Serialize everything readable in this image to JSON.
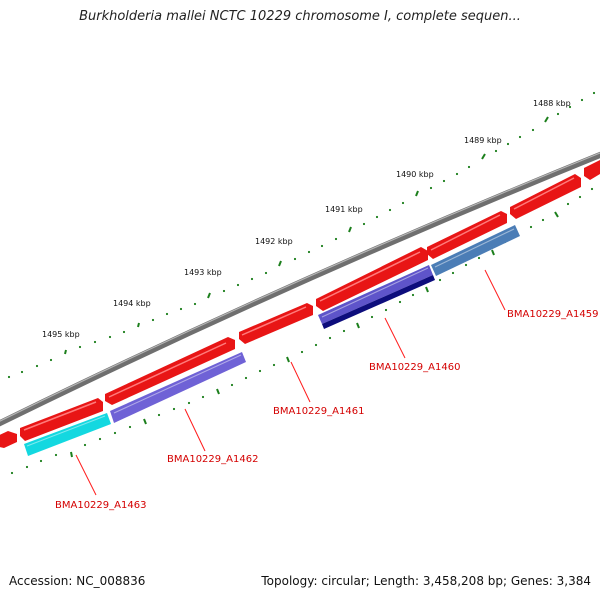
{
  "title": "Burkholderia mallei NCTC 10229 chromosome I, complete sequen...",
  "footer": {
    "accession": "Accession: NC_008836",
    "summary": "Topology: circular; Length: 3,458,208 bp; Genes: 3,384"
  },
  "scale_labels": [
    "1488 kbp",
    "1489 kbp",
    "1490 kbp",
    "1491 kbp",
    "1492 kbp",
    "1493 kbp",
    "1494 kbp",
    "1495 kbp"
  ],
  "genes": [
    {
      "name": "BMA10229_A1459",
      "color": "#4b7db6"
    },
    {
      "name": "BMA10229_A1460",
      "color": "#0d0d7c"
    },
    {
      "name": "BMA10229_A1461",
      "color": "#6f62d6"
    },
    {
      "name": "BMA10229_A1462",
      "color": "#6f62d6"
    },
    {
      "name": "BMA10229_A1463",
      "color": "#13d8e0"
    }
  ],
  "colors": {
    "backbone": "#777777",
    "cds": "#ee1111",
    "ticks": "#1c7f1c",
    "label_line": "#ff1a1a"
  }
}
